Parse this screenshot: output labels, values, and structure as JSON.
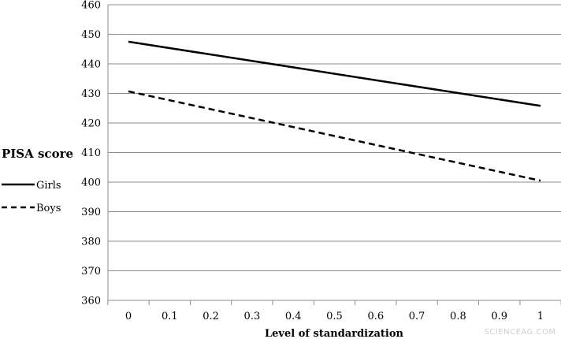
{
  "chart_data": {
    "type": "line",
    "xlabel": "Level of standardization",
    "ylabel": "PISA score",
    "x": [
      0,
      0.1,
      0.2,
      0.3,
      0.4,
      0.5,
      0.6,
      0.7,
      0.8,
      0.9,
      1
    ],
    "x_tick_labels": [
      "0",
      "0.1",
      "0.2",
      "0.3",
      "0.4",
      "0.5",
      "0.6",
      "0.7",
      "0.8",
      "0.9",
      "1"
    ],
    "y_ticks": [
      360,
      370,
      380,
      390,
      400,
      410,
      420,
      430,
      440,
      450,
      460
    ],
    "ylim": [
      360,
      460
    ],
    "grid": "horizontal",
    "legend_position": "left",
    "series": [
      {
        "name": "Girls",
        "style": "solid",
        "color": "#000000",
        "start": [
          0,
          447.5
        ],
        "end": [
          1,
          425.8
        ]
      },
      {
        "name": "Boys",
        "style": "dashed",
        "color": "#000000",
        "start": [
          0,
          430.7
        ],
        "end": [
          1,
          400.5
        ]
      }
    ]
  },
  "watermark": "SCIENCEAG.COM"
}
